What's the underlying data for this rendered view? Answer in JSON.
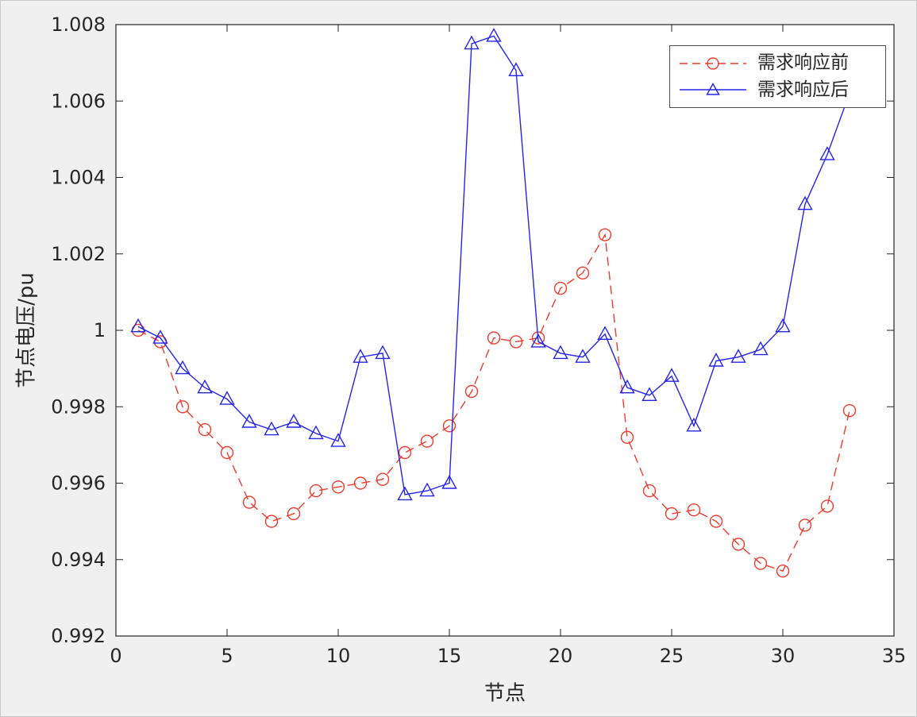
{
  "figure": {
    "background_color": "#f0f0f0",
    "plot_background_color": "#ffffff",
    "axis_color": "#262626"
  },
  "chart_data": {
    "type": "line",
    "title": "",
    "xlabel": "节点",
    "ylabel": "节点电压/pu",
    "xlim": [
      0,
      35
    ],
    "ylim": [
      0.992,
      1.008
    ],
    "xticks": [
      0,
      5,
      10,
      15,
      20,
      25,
      30,
      35
    ],
    "xtick_labels": [
      "0",
      "5",
      "10",
      "15",
      "20",
      "25",
      "30",
      "35"
    ],
    "yticks": [
      0.992,
      0.994,
      0.996,
      0.998,
      1,
      1.002,
      1.004,
      1.006,
      1.008
    ],
    "ytick_labels": [
      "0.992",
      "0.994",
      "0.996",
      "0.998",
      "1",
      "1.002",
      "1.004",
      "1.006",
      "1.008"
    ],
    "grid": false,
    "legend_position": "top-right",
    "x": [
      1,
      2,
      3,
      4,
      5,
      6,
      7,
      8,
      9,
      10,
      11,
      12,
      13,
      14,
      15,
      16,
      17,
      18,
      19,
      20,
      21,
      22,
      23,
      24,
      25,
      26,
      27,
      28,
      29,
      30,
      31,
      32,
      33
    ],
    "series": [
      {
        "name": "需求响应前",
        "color": "#f03b2e",
        "line_style": "dashed",
        "marker": "circle",
        "values": [
          1.0,
          0.9997,
          0.998,
          0.9974,
          0.9968,
          0.9955,
          0.995,
          0.9952,
          0.9958,
          0.9959,
          0.996,
          0.9961,
          0.9968,
          0.9971,
          0.9975,
          0.9984,
          0.9998,
          0.9997,
          0.9998,
          1.0011,
          1.0015,
          1.0025,
          0.9972,
          0.9958,
          0.9952,
          0.9953,
          0.995,
          0.9944,
          0.9939,
          0.9937,
          0.9949,
          0.9954,
          0.9979
        ]
      },
      {
        "name": "需求响应后",
        "color": "#2424f0",
        "line_style": "solid",
        "marker": "triangle",
        "values": [
          1.0001,
          0.9998,
          0.999,
          0.9985,
          0.9982,
          0.9976,
          0.9974,
          0.9976,
          0.9973,
          0.9971,
          0.9993,
          0.9994,
          0.9957,
          0.9958,
          0.996,
          1.0075,
          1.0077,
          1.0068,
          0.9997,
          0.9994,
          0.9993,
          0.9999,
          0.9985,
          0.9983,
          0.9988,
          0.9975,
          0.9992,
          0.9993,
          0.9995,
          1.0001,
          1.0033,
          1.0046,
          1.0062
        ]
      }
    ]
  }
}
